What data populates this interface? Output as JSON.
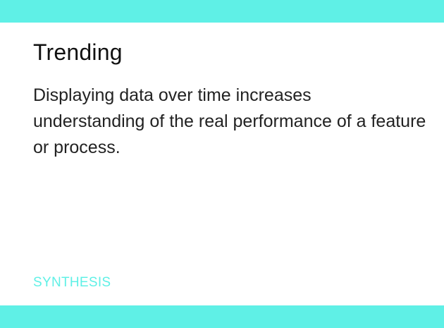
{
  "card": {
    "title": "Trending",
    "description": "Displaying data over time increases understanding of the real performance of a feature or process.",
    "category": "SYNTHESIS"
  },
  "colors": {
    "accent": "#5ff0e6",
    "background": "#ffffff",
    "text": "#111111"
  }
}
